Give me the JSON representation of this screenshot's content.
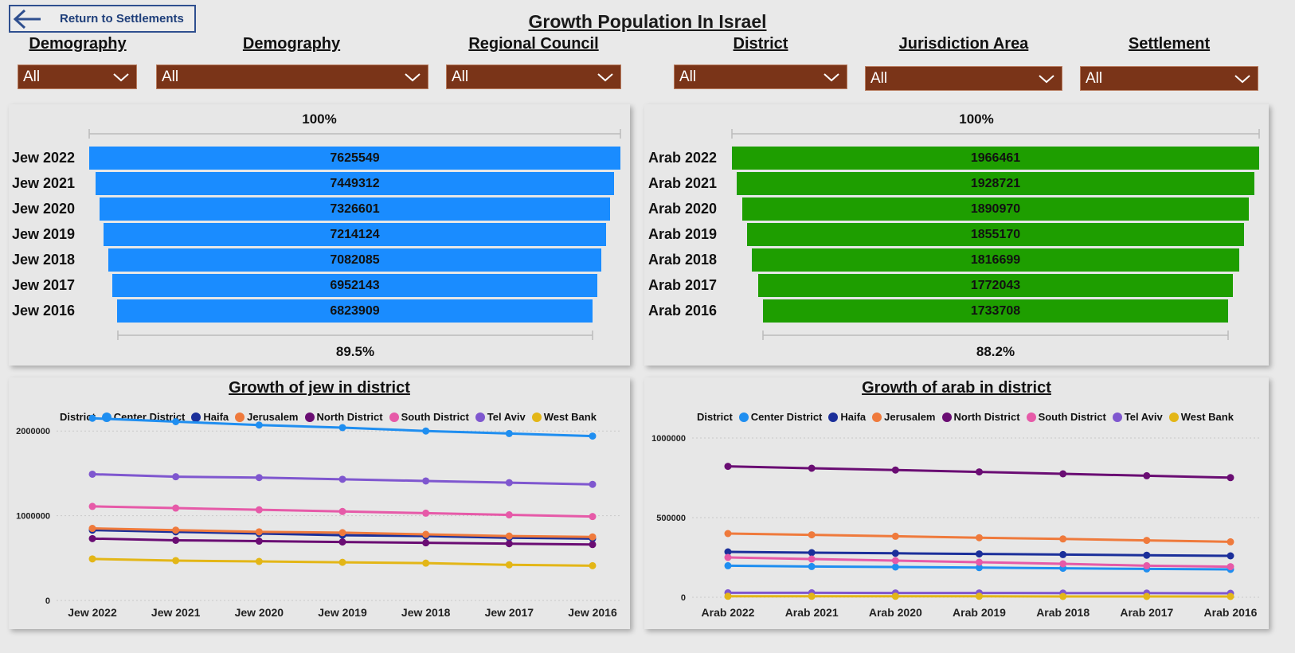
{
  "back_button": {
    "label": "Return to Settlements"
  },
  "page_title": "Growth Population In Israel",
  "filters": [
    {
      "label": "Demography",
      "value": "All"
    },
    {
      "label": "Demography",
      "value": "All"
    },
    {
      "label": "Regional Council",
      "value": "All"
    },
    {
      "label": "District",
      "value": "All"
    },
    {
      "label": "Jurisdiction Area",
      "value": "All"
    },
    {
      "label": "Settlement",
      "value": "All"
    }
  ],
  "funnel_jew": {
    "top_pct": "100%",
    "bottom_pct": "89.5%",
    "color": "#1a8cff",
    "rows": [
      {
        "label": "Jew 2022",
        "value": "7625549"
      },
      {
        "label": "Jew 2021",
        "value": "7449312"
      },
      {
        "label": "Jew 2020",
        "value": "7326601"
      },
      {
        "label": "Jew 2019",
        "value": "7214124"
      },
      {
        "label": "Jew 2018",
        "value": "7082085"
      },
      {
        "label": "Jew 2017",
        "value": "6952143"
      },
      {
        "label": "Jew 2016",
        "value": "6823909"
      }
    ]
  },
  "funnel_arab": {
    "top_pct": "100%",
    "bottom_pct": "88.2%",
    "color": "#1e9e00",
    "rows": [
      {
        "label": "Arab 2022",
        "value": "1966461"
      },
      {
        "label": "Arab 2021",
        "value": "1928721"
      },
      {
        "label": "Arab 2020",
        "value": "1890970"
      },
      {
        "label": "Arab 2019",
        "value": "1855170"
      },
      {
        "label": "Arab 2018",
        "value": "1816699"
      },
      {
        "label": "Arab 2017",
        "value": "1772043"
      },
      {
        "label": "Arab 2016",
        "value": "1733708"
      }
    ]
  },
  "legend": {
    "title": "District",
    "items": [
      {
        "name": "Center District",
        "color": "#1f8ef0"
      },
      {
        "name": "Haifa",
        "color": "#1b2f9a"
      },
      {
        "name": "Jerusalem",
        "color": "#ef7a3c"
      },
      {
        "name": "North District",
        "color": "#6a0d73"
      },
      {
        "name": "South District",
        "color": "#e65aa8"
      },
      {
        "name": "Tel Aviv",
        "color": "#7f57cf"
      },
      {
        "name": "West Bank",
        "color": "#e3b617"
      }
    ]
  },
  "chart_data": [
    {
      "type": "line",
      "title": "Growth of jew in district",
      "categories": [
        "Jew 2022",
        "Jew 2021",
        "Jew 2020",
        "Jew 2019",
        "Jew 2018",
        "Jew 2017",
        "Jew 2016"
      ],
      "yticks": [
        "0",
        "1000000",
        "2000000"
      ],
      "ylim": [
        0,
        2500000
      ],
      "legend_title": "District",
      "series": [
        {
          "name": "Center District",
          "color": "#1f8ef0",
          "values": [
            2150000,
            2110000,
            2070000,
            2040000,
            2000000,
            1970000,
            1940000
          ]
        },
        {
          "name": "Haifa",
          "color": "#1b2f9a",
          "values": [
            830000,
            810000,
            790000,
            770000,
            760000,
            740000,
            730000
          ]
        },
        {
          "name": "Jerusalem",
          "color": "#ef7a3c",
          "values": [
            850000,
            830000,
            810000,
            800000,
            780000,
            760000,
            750000
          ]
        },
        {
          "name": "North District",
          "color": "#6a0d73",
          "values": [
            730000,
            710000,
            700000,
            690000,
            680000,
            670000,
            660000
          ]
        },
        {
          "name": "South District",
          "color": "#e65aa8",
          "values": [
            1110000,
            1090000,
            1070000,
            1050000,
            1030000,
            1010000,
            990000
          ]
        },
        {
          "name": "Tel Aviv",
          "color": "#7f57cf",
          "values": [
            1490000,
            1460000,
            1450000,
            1430000,
            1410000,
            1390000,
            1370000
          ]
        },
        {
          "name": "West Bank",
          "color": "#e3b617",
          "values": [
            490000,
            470000,
            460000,
            450000,
            440000,
            420000,
            410000
          ]
        }
      ]
    },
    {
      "type": "line",
      "title": "Growth of arab in district",
      "categories": [
        "Arab 2022",
        "Arab 2021",
        "Arab 2020",
        "Arab 2019",
        "Arab 2018",
        "Arab 2017",
        "Arab 2016"
      ],
      "yticks": [
        "0",
        "500000",
        "1000000"
      ],
      "ylim": [
        0,
        1000000
      ],
      "legend_title": "District",
      "series": [
        {
          "name": "Center District",
          "color": "#1f8ef0",
          "values": [
            198000,
            193000,
            190000,
            186000,
            182000,
            178000,
            175000
          ]
        },
        {
          "name": "Haifa",
          "color": "#1b2f9a",
          "values": [
            285000,
            280000,
            276000,
            272000,
            268000,
            264000,
            260000
          ]
        },
        {
          "name": "Jerusalem",
          "color": "#ef7a3c",
          "values": [
            400000,
            392000,
            383000,
            374000,
            366000,
            357000,
            348000
          ]
        },
        {
          "name": "North District",
          "color": "#6a0d73",
          "values": [
            822000,
            810000,
            799000,
            787000,
            775000,
            763000,
            751000
          ]
        },
        {
          "name": "South District",
          "color": "#e65aa8",
          "values": [
            250000,
            240000,
            230000,
            220000,
            210000,
            198000,
            192000
          ]
        },
        {
          "name": "Tel Aviv",
          "color": "#7f57cf",
          "values": [
            28000,
            28000,
            27000,
            27000,
            26000,
            26000,
            25000
          ]
        },
        {
          "name": "West Bank",
          "color": "#e3b617",
          "values": [
            6000,
            6000,
            6000,
            6000,
            5000,
            5000,
            5000
          ]
        }
      ]
    }
  ]
}
